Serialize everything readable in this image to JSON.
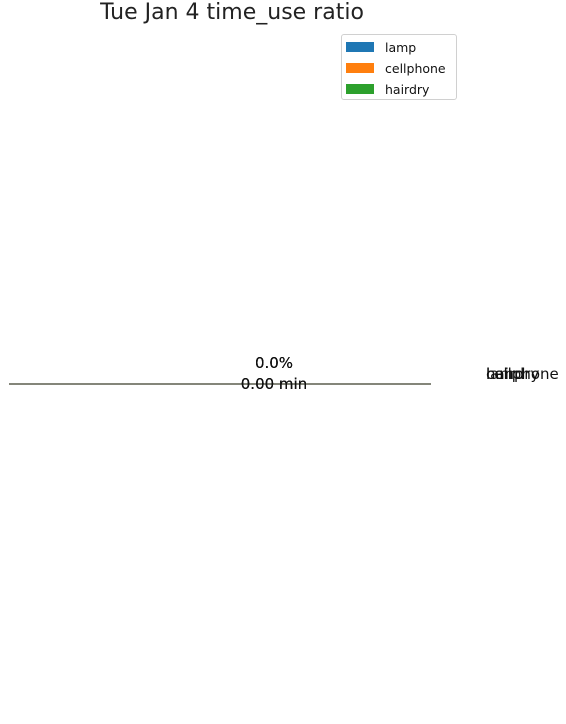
{
  "chart_data": {
    "type": "pie",
    "title": "Tue Jan  4 time_use ratio",
    "labels": [
      "lamp",
      "cellphone",
      "hairdry"
    ],
    "values": [
      0,
      0,
      0
    ],
    "colors": [
      "#1f77b4",
      "#ff7f0e",
      "#2ca02c"
    ],
    "percent_label": "0.0%",
    "minutes_label": "0.00 min",
    "legend": {
      "placement": "top-right",
      "entries": [
        "lamp",
        "cellphone",
        "hairdry"
      ]
    }
  }
}
